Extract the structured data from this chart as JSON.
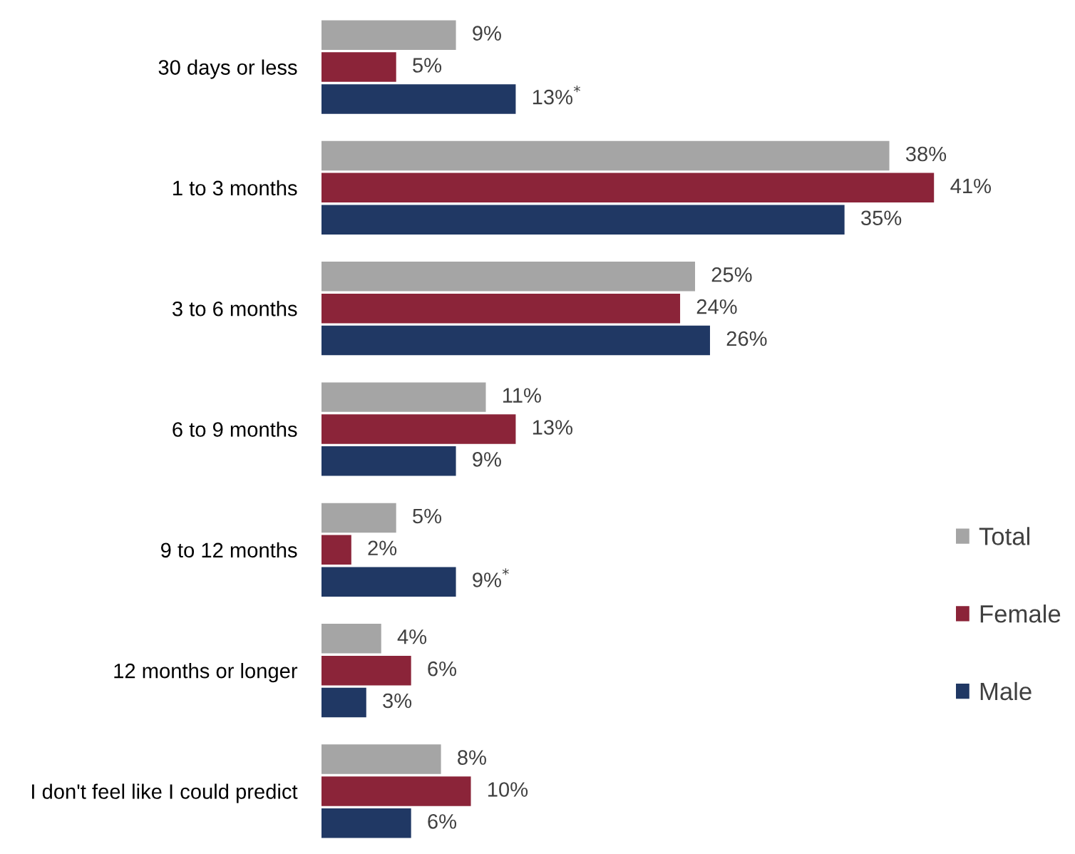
{
  "chart_data": {
    "type": "bar",
    "orientation": "horizontal",
    "data_labels": true,
    "legend": "right",
    "grid": false,
    "categories": [
      "30 days or less",
      "1 to 3 months",
      "3 to 6 months",
      "6 to 9 months",
      "9 to 12 months",
      "12 months or longer",
      "I don't feel like I could predict"
    ],
    "series": [
      {
        "name": "Total",
        "color": "#a5a5a5",
        "values": [
          9,
          38,
          25,
          11,
          5,
          4,
          8
        ],
        "value_labels": [
          "9%",
          "38%",
          "25%",
          "11%",
          "5%",
          "4%",
          "8%"
        ]
      },
      {
        "name": "Female",
        "color": "#8b2439",
        "values": [
          5,
          41,
          24,
          13,
          2,
          6,
          10
        ],
        "value_labels": [
          "5%",
          "41%",
          "24%",
          "13%",
          "2%",
          "6%",
          "10%"
        ]
      },
      {
        "name": "Male",
        "color": "#203864",
        "values": [
          13,
          35,
          26,
          9,
          9,
          3,
          6
        ],
        "value_labels": [
          "13%$^{*}$",
          "35%",
          "26%",
          "9%",
          "9%$^{*}$",
          "3%",
          "6%"
        ]
      }
    ]
  }
}
